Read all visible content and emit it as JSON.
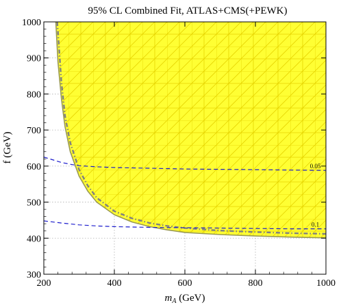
{
  "chart_data": {
    "type": "line",
    "title": "95% CL Combined Fit, ATLAS+CMS(+PEWK)",
    "xlabel_italic": "m",
    "xlabel_sub": "A",
    "xlabel_rest": " (GeV)",
    "ylabel": "f (GeV)",
    "xlim": [
      200,
      1000
    ],
    "ylim": [
      300,
      1000
    ],
    "xticks": [
      200,
      400,
      600,
      800,
      1000
    ],
    "yticks": [
      300,
      400,
      500,
      600,
      700,
      800,
      900,
      1000
    ],
    "grid": true,
    "colors": {
      "region_fill": "#ffff33",
      "region_hatch": "#e6d400",
      "boundary": "#9a9a52",
      "pewk_curve": "#808080",
      "contour": "#1a1acc",
      "gridline": "#b0b0b0"
    },
    "series": [
      {
        "style": "solid",
        "x": [
          234,
          240,
          250,
          260,
          275,
          300,
          325,
          350,
          400,
          450,
          500,
          550,
          600,
          700,
          800,
          900,
          1000
        ],
        "y": [
          1000,
          890,
          785,
          710,
          640,
          572,
          530,
          500,
          465,
          445,
          432,
          423,
          416,
          410,
          406,
          403,
          401
        ]
      },
      {
        "style": "dashed",
        "x": [
          238,
          250,
          260,
          275,
          300,
          325,
          350,
          400,
          450,
          500,
          550,
          600,
          700,
          800,
          900,
          1000
        ],
        "y": [
          1000,
          830,
          740,
          665,
          590,
          545,
          512,
          475,
          455,
          442,
          434,
          428,
          421,
          417,
          414,
          412
        ]
      },
      {
        "style": "dashed",
        "x": [
          200,
          250,
          275,
          300,
          350,
          400,
          500,
          600,
          700,
          800,
          900,
          1000
        ],
        "y": [
          625,
          610,
          605,
          601,
          598,
          596,
          594,
          592,
          591,
          590,
          589,
          588
        ]
      },
      {
        "style": "dashed",
        "x": [
          200,
          250,
          300,
          350,
          400,
          500,
          600,
          700,
          800,
          900,
          1000
        ],
        "y": [
          448,
          442,
          437,
          434,
          432,
          430,
          429,
          428,
          427,
          426,
          426
        ]
      }
    ],
    "annotations": [
      {
        "text": "0.05",
        "x": 970,
        "y": 594
      },
      {
        "text": "0.1",
        "x": 970,
        "y": 432
      }
    ]
  }
}
